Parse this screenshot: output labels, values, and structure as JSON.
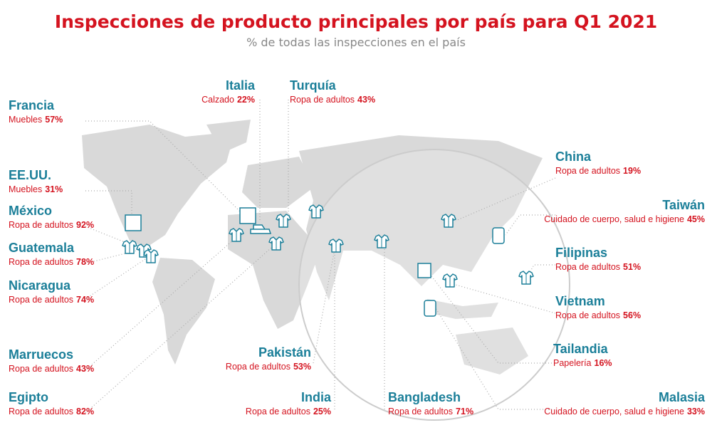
{
  "header": {
    "title": "Inspecciones de producto principales por país para Q1 2021",
    "subtitle": "% de todas las inspecciones en el país"
  },
  "countries": [
    {
      "name": "Francia",
      "category": "Muebles",
      "value": "57%"
    },
    {
      "name": "EE.UU.",
      "category": "Muebles",
      "value": "31%"
    },
    {
      "name": "México",
      "category": "Ropa de adultos",
      "value": "92%"
    },
    {
      "name": "Guatemala",
      "category": "Ropa de adultos",
      "value": "78%"
    },
    {
      "name": "Nicaragua",
      "category": "Ropa de adultos",
      "value": "74%"
    },
    {
      "name": "Marruecos",
      "category": "Ropa de adultos",
      "value": "43%"
    },
    {
      "name": "Egipto",
      "category": "Ropa de adultos",
      "value": "82%"
    },
    {
      "name": "Italia",
      "category": "Calzado",
      "value": "22%"
    },
    {
      "name": "Turquía",
      "category": "Ropa de adultos",
      "value": "43%"
    },
    {
      "name": "Pakistán",
      "category": "Ropa de adultos",
      "value": "53%"
    },
    {
      "name": "India",
      "category": "Ropa de adultos",
      "value": "25%"
    },
    {
      "name": "Bangladesh",
      "category": "Ropa de adultos",
      "value": "71%"
    },
    {
      "name": "China",
      "category": "Ropa de adultos",
      "value": "19%"
    },
    {
      "name": "Taiwán",
      "category": "Cuidado de cuerpo, salud e higiene",
      "value": "45%"
    },
    {
      "name": "Filipinas",
      "category": "Ropa de adultos",
      "value": "51%"
    },
    {
      "name": "Vietnam",
      "category": "Ropa de adultos",
      "value": "56%"
    },
    {
      "name": "Tailandia",
      "category": "Papelería",
      "value": "16%"
    },
    {
      "name": "Malasia",
      "category": "Cuidado de cuerpo, salud e higiene",
      "value": "33%"
    }
  ]
}
